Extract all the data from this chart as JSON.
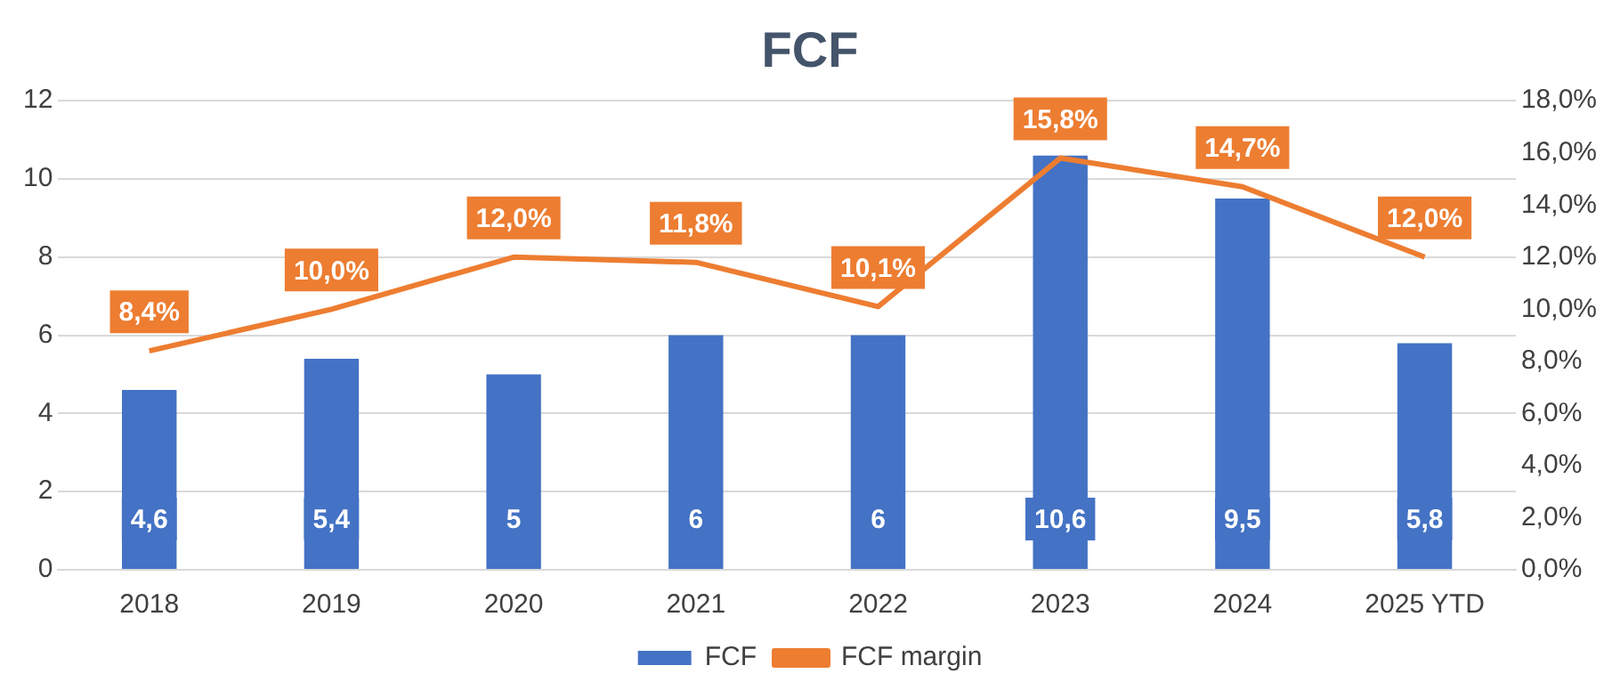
{
  "chart_data": {
    "type": "bar",
    "title": "FCF",
    "categories": [
      "2018",
      "2019",
      "2020",
      "2021",
      "2022",
      "2023",
      "2024",
      "2025 YTD"
    ],
    "series": [
      {
        "name": "FCF",
        "color": "#4472c4",
        "values": [
          4.6,
          5.4,
          5,
          6,
          6,
          10.6,
          9.5,
          5.8
        ],
        "value_labels": [
          "4,6",
          "5,4",
          "5",
          "6",
          "6",
          "10,6",
          "9,5",
          "5,8"
        ]
      },
      {
        "name": "FCF margin",
        "type": "line",
        "axis": "y2",
        "color": "#ed7d31",
        "values": [
          8.4,
          10.0,
          12.0,
          11.8,
          10.1,
          15.8,
          14.7,
          12.0
        ],
        "value_labels": [
          "8,4%",
          "10,0%",
          "12,0%",
          "11,8%",
          "10,1%",
          "15,8%",
          "14,7%",
          "12,0%"
        ]
      }
    ],
    "ylim": [
      0,
      12
    ],
    "yticks": [
      0,
      2,
      4,
      6,
      8,
      10,
      12
    ],
    "y2lim": [
      0,
      18
    ],
    "y2ticks": [
      {
        "value": 0,
        "label": "0,0%"
      },
      {
        "value": 2,
        "label": "2,0%"
      },
      {
        "value": 4,
        "label": "4,0%"
      },
      {
        "value": 6,
        "label": "6,0%"
      },
      {
        "value": 8,
        "label": "8,0%"
      },
      {
        "value": 10,
        "label": "10,0%"
      },
      {
        "value": 12,
        "label": "12,0%"
      },
      {
        "value": 14,
        "label": "14,0%"
      },
      {
        "value": 16,
        "label": "16,0%"
      },
      {
        "value": 18,
        "label": "18,0%"
      }
    ],
    "grid": "y",
    "legend": "bottom",
    "marker": "none",
    "line_style": "solid"
  }
}
